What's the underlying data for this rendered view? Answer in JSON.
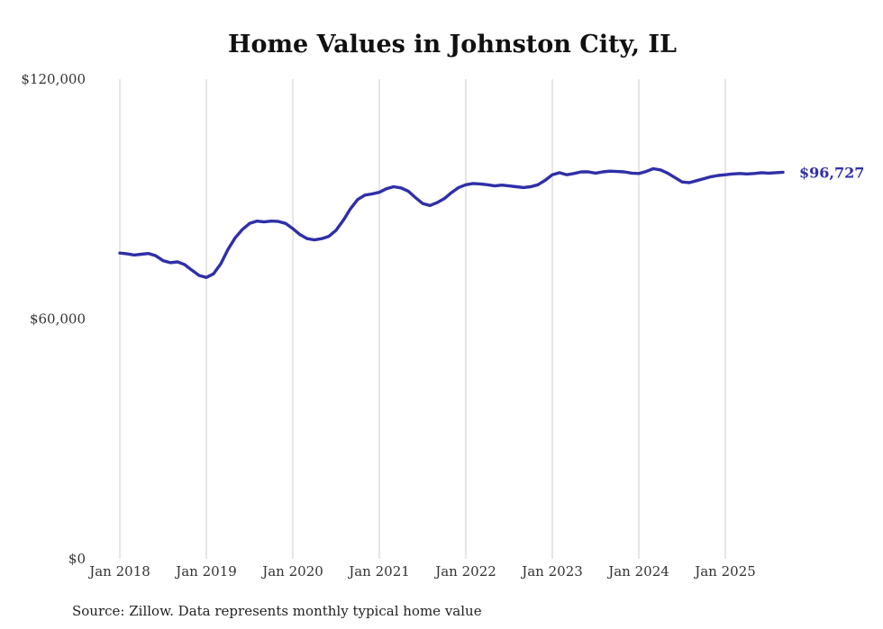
{
  "chart_data": {
    "type": "line",
    "title": "Home Values in Johnston City, IL",
    "xlabel": "",
    "ylabel": "",
    "ylim": [
      0,
      120000
    ],
    "grid": "vertical-only",
    "line_color": "#2F2FA8",
    "gridline_color": "#cccccc",
    "start_month": "Jan 2018",
    "end_month": "Sep 2025",
    "x_ticks": [
      {
        "label": "Jan 2018",
        "month": 0
      },
      {
        "label": "Jan 2019",
        "month": 12
      },
      {
        "label": "Jan 2020",
        "month": 24
      },
      {
        "label": "Jan 2021",
        "month": 36
      },
      {
        "label": "Jan 2022",
        "month": 48
      },
      {
        "label": "Jan 2023",
        "month": 60
      },
      {
        "label": "Jan 2024",
        "month": 72
      },
      {
        "label": "Jan 2025",
        "month": 84
      }
    ],
    "y_ticks": [
      {
        "label": "$0",
        "value": 0
      },
      {
        "label": "$60,000",
        "value": 60000
      },
      {
        "label": "$120,000",
        "value": 120000
      }
    ],
    "series": [
      {
        "name": "Monthly typical home value",
        "values": [
          76500,
          76300,
          76000,
          76200,
          76400,
          75800,
          74600,
          74100,
          74300,
          73600,
          72200,
          70900,
          70400,
          71300,
          73800,
          77400,
          80300,
          82400,
          83900,
          84500,
          84300,
          84500,
          84400,
          83900,
          82600,
          81100,
          80100,
          79800,
          80100,
          80700,
          82200,
          84700,
          87600,
          89900,
          91000,
          91300,
          91700,
          92600,
          93100,
          92800,
          92000,
          90400,
          88900,
          88400,
          89100,
          90100,
          91600,
          92900,
          93600,
          93900,
          93800,
          93600,
          93300,
          93500,
          93300,
          93100,
          92900,
          93100,
          93600,
          94700,
          96100,
          96600,
          96100,
          96400,
          96800,
          96800,
          96500,
          96800,
          97000,
          96900,
          96800,
          96500,
          96400,
          96900,
          97600,
          97300,
          96500,
          95400,
          94300,
          94100,
          94600,
          95100,
          95600,
          95900,
          96100,
          96300,
          96400,
          96300,
          96400,
          96600,
          96500,
          96600,
          96727
        ]
      }
    ],
    "annotation": {
      "label": "$96,727",
      "value": 96727
    }
  },
  "source": "Source: Zillow. Data represents monthly typical home value"
}
